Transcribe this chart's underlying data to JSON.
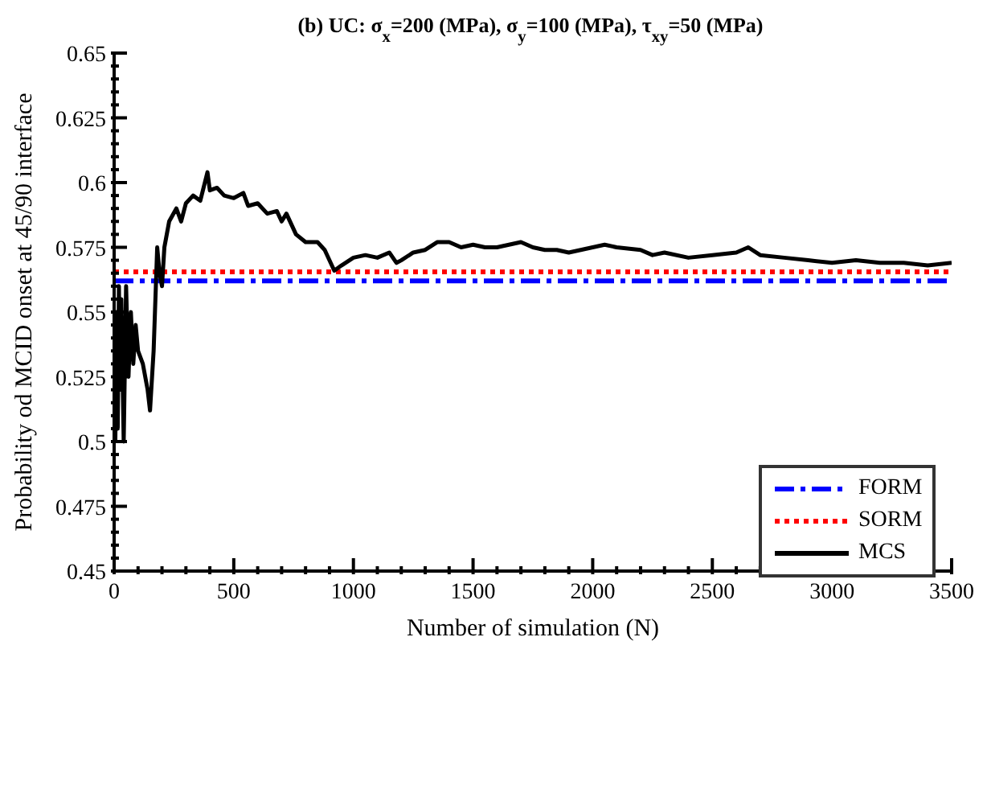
{
  "chart_data": {
    "type": "line",
    "title": "(b) UC: σ$_{x}$=200 (MPa), σ$_{y}$=100 (MPa), τ$_{xy}$=50 (MPa)",
    "xlabel": "Number of simulation (N)",
    "ylabel": "Probability od MCID onset at 45/90 interface",
    "xlim": [
      0,
      3500
    ],
    "ylim": [
      0.45,
      0.65
    ],
    "xticks": [
      0,
      {
        "value": 100,
        "label": null
      },
      {
        "value": 200,
        "label": null
      },
      {
        "value": 300,
        "label": null
      },
      {
        "value": 400,
        "label": null
      },
      500,
      {
        "value": 600,
        "label": null
      },
      {
        "value": 700,
        "label": null
      },
      {
        "value": 800,
        "label": null
      },
      {
        "value": 900,
        "label": null
      },
      1000,
      {
        "value": 1100,
        "label": null
      },
      {
        "value": 1200,
        "label": null
      },
      {
        "value": 1300,
        "label": null
      },
      {
        "value": 1400,
        "label": null
      },
      1500,
      {
        "value": 1600,
        "label": null
      },
      {
        "value": 1700,
        "label": null
      },
      {
        "value": 1800,
        "label": null
      },
      {
        "value": 1900,
        "label": null
      },
      2000,
      {
        "value": 2100,
        "label": null
      },
      {
        "value": 2200,
        "label": null
      },
      {
        "value": 2300,
        "label": null
      },
      {
        "value": 2400,
        "label": null
      },
      2500,
      {
        "value": 2600,
        "label": null
      },
      {
        "value": 2700,
        "label": null
      },
      {
        "value": 2800,
        "label": null
      },
      {
        "value": 2900,
        "label": null
      },
      3000,
      {
        "value": 3100,
        "label": null
      },
      {
        "value": 3200,
        "label": null
      },
      {
        "value": 3300,
        "label": null
      },
      {
        "value": 3400,
        "label": null
      },
      3500
    ],
    "yticks": [
      0.45,
      {
        "value": 0.455,
        "label": null
      },
      {
        "value": 0.46,
        "label": null
      },
      {
        "value": 0.465,
        "label": null
      },
      {
        "value": 0.47,
        "label": null
      },
      0.475,
      {
        "value": 0.48,
        "label": null
      },
      {
        "value": 0.485,
        "label": null
      },
      {
        "value": 0.49,
        "label": null
      },
      {
        "value": 0.495,
        "label": null
      },
      0.5,
      {
        "value": 0.505,
        "label": null
      },
      {
        "value": 0.51,
        "label": null
      },
      {
        "value": 0.515,
        "label": null
      },
      {
        "value": 0.52,
        "label": null
      },
      0.525,
      {
        "value": 0.53,
        "label": null
      },
      {
        "value": 0.535,
        "label": null
      },
      {
        "value": 0.54,
        "label": null
      },
      {
        "value": 0.545,
        "label": null
      },
      0.55,
      {
        "value": 0.555,
        "label": null
      },
      {
        "value": 0.56,
        "label": null
      },
      {
        "value": 0.565,
        "label": null
      },
      {
        "value": 0.57,
        "label": null
      },
      0.575,
      {
        "value": 0.58,
        "label": null
      },
      {
        "value": 0.585,
        "label": null
      },
      {
        "value": 0.59,
        "label": null
      },
      {
        "value": 0.595,
        "label": null
      },
      0.6,
      {
        "value": 0.605,
        "label": null
      },
      {
        "value": 0.61,
        "label": null
      },
      {
        "value": 0.615,
        "label": null
      },
      {
        "value": 0.62,
        "label": null
      },
      0.625,
      {
        "value": 0.63,
        "label": null
      },
      {
        "value": 0.635,
        "label": null
      },
      {
        "value": 0.64,
        "label": null
      },
      {
        "value": 0.645,
        "label": null
      },
      0.65
    ],
    "grid": false,
    "legend": "bottom right",
    "marker": "none",
    "series": [
      {
        "name": "FORM",
        "color": "#0000ff",
        "line_style": "dashed",
        "x": [
          0,
          3500
        ],
        "values": [
          0.562,
          0.562
        ]
      },
      {
        "name": "SORM",
        "color": "#ff0000",
        "line_style": "dotted",
        "x": [
          0,
          3500
        ],
        "values": [
          0.5655,
          0.5655
        ]
      },
      {
        "name": "MCS",
        "color": "#000000",
        "line_style": "solid",
        "x": [
          5,
          10,
          15,
          20,
          25,
          30,
          40,
          50,
          60,
          70,
          80,
          90,
          100,
          120,
          140,
          150,
          165,
          180,
          190,
          200,
          210,
          230,
          260,
          280,
          300,
          330,
          360,
          390,
          400,
          430,
          460,
          500,
          540,
          560,
          600,
          640,
          680,
          700,
          720,
          760,
          800,
          850,
          880,
          920,
          950,
          1000,
          1050,
          1100,
          1150,
          1180,
          1200,
          1250,
          1300,
          1350,
          1400,
          1450,
          1500,
          1550,
          1600,
          1700,
          1750,
          1800,
          1850,
          1900,
          1950,
          2000,
          2050,
          2100,
          2200,
          2250,
          2300,
          2400,
          2500,
          2600,
          2650,
          2700,
          2800,
          2900,
          3000,
          3100,
          3200,
          3300,
          3400,
          3500
        ],
        "values": [
          0.5,
          0.55,
          0.505,
          0.56,
          0.52,
          0.555,
          0.5,
          0.56,
          0.525,
          0.55,
          0.53,
          0.545,
          0.535,
          0.53,
          0.52,
          0.512,
          0.535,
          0.575,
          0.565,
          0.56,
          0.575,
          0.585,
          0.59,
          0.585,
          0.592,
          0.595,
          0.593,
          0.604,
          0.597,
          0.598,
          0.595,
          0.594,
          0.596,
          0.591,
          0.592,
          0.588,
          0.589,
          0.585,
          0.588,
          0.58,
          0.577,
          0.577,
          0.574,
          0.566,
          0.568,
          0.571,
          0.572,
          0.571,
          0.573,
          0.569,
          0.57,
          0.573,
          0.574,
          0.577,
          0.577,
          0.575,
          0.576,
          0.575,
          0.575,
          0.577,
          0.575,
          0.574,
          0.574,
          0.573,
          0.574,
          0.575,
          0.576,
          0.575,
          0.574,
          0.572,
          0.573,
          0.571,
          0.572,
          0.573,
          0.575,
          0.572,
          0.571,
          0.57,
          0.569,
          0.57,
          0.569,
          0.569,
          0.568,
          0.569
        ]
      }
    ]
  }
}
